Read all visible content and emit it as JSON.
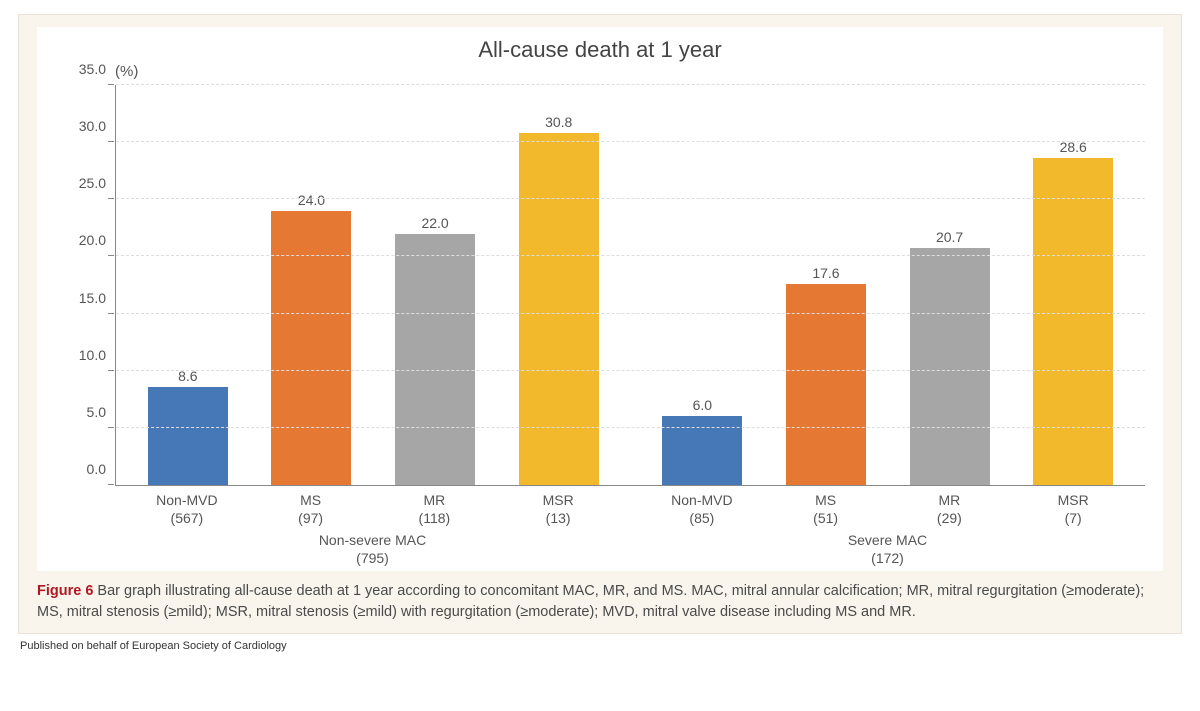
{
  "chart": {
    "type": "bar",
    "title": "All-cause death at 1 year",
    "y_unit": "(%)",
    "ylim": [
      0,
      35
    ],
    "ytick_step": 5,
    "y_decimals": 1,
    "background_color": "#ffffff",
    "panel_background": "#f9f5ed",
    "axis_color": "#888888",
    "grid_color": "#dddddd",
    "title_fontsize": 22,
    "label_fontsize": 14,
    "bar_colors": {
      "blue": "#4677b6",
      "orange": "#e57833",
      "gray": "#a6a6a6",
      "yellow": "#f2b92c"
    },
    "color_order": [
      "blue",
      "orange",
      "gray",
      "yellow"
    ],
    "groups": [
      {
        "label_line1": "Non-severe MAC",
        "label_line2": "(795)",
        "bars": [
          {
            "cat": "Non-MVD",
            "n": "(567)",
            "value": 8.6
          },
          {
            "cat": "MS",
            "n": "(97)",
            "value": 24.0
          },
          {
            "cat": "MR",
            "n": "(118)",
            "value": 22.0
          },
          {
            "cat": "MSR",
            "n": "(13)",
            "value": 30.8
          }
        ]
      },
      {
        "label_line1": "Severe MAC",
        "label_line2": "(172)",
        "bars": [
          {
            "cat": "Non-MVD",
            "n": "(85)",
            "value": 6.0
          },
          {
            "cat": "MS",
            "n": "(51)",
            "value": 17.6
          },
          {
            "cat": "MR",
            "n": "(29)",
            "value": 20.7
          },
          {
            "cat": "MSR",
            "n": "(7)",
            "value": 28.6
          }
        ]
      }
    ]
  },
  "caption": {
    "figure_label": "Figure 6",
    "text": " Bar graph illustrating all-cause death at 1 year according to concomitant MAC, MR, and MS. MAC, mitral annular calcification; MR, mitral regurgitation (≥moderate); MS, mitral stenosis (≥mild); MSR, mitral stenosis (≥mild) with regurgitation (≥moderate); MVD, mitral valve disease including MS and MR."
  },
  "credit": "Published on behalf of European Society of Cardiology"
}
